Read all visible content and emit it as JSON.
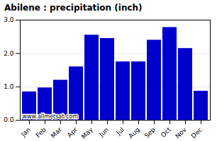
{
  "chart_data": {
    "type": "bar",
    "title": "Abilene : precipitation (inch)",
    "categories": [
      "Jan",
      "Feb",
      "Mar",
      "Apr",
      "May",
      "Jun",
      "Jul",
      "Aug",
      "Sep",
      "Oct",
      "Nov",
      "Dec"
    ],
    "values": [
      0.85,
      0.97,
      1.2,
      1.6,
      2.55,
      2.45,
      1.75,
      1.75,
      2.4,
      2.78,
      2.15,
      0.87
    ],
    "color": "#0000CC",
    "ylim": [
      0,
      3
    ],
    "yticks": [
      0,
      1,
      2,
      3
    ],
    "grid": true,
    "annotation": "www.allmetsat.com"
  }
}
